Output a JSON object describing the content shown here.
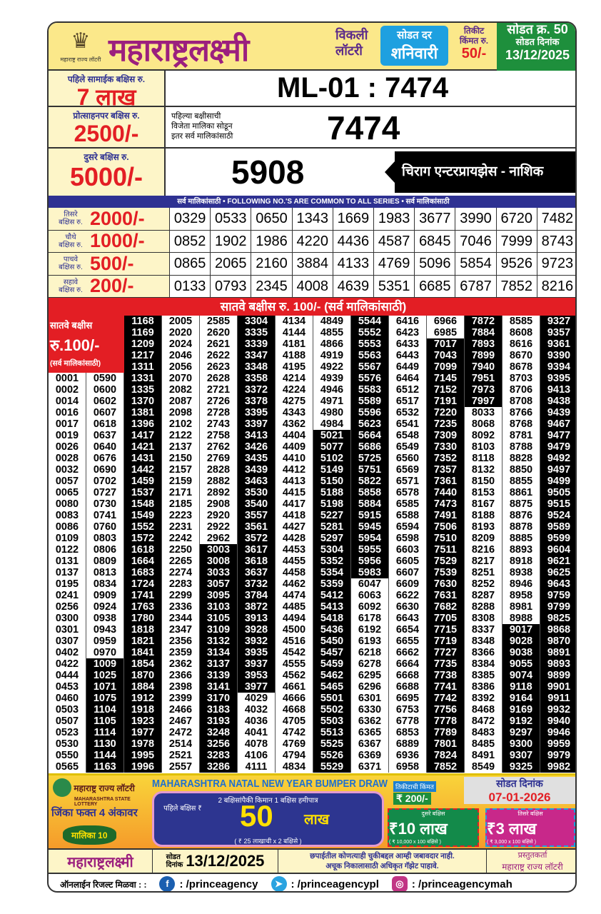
{
  "header": {
    "logo_caption": "महाराष्ट्र राज्य लॉटरी",
    "title": "महाराष्ट्रलक्ष्मी",
    "weekly_line1": "विकली",
    "weekly_line2": "लॉटरी",
    "draw_day_label": "सोडत दर",
    "draw_day": "शनिवारी",
    "ticket_price_label1": "तिकीट",
    "ticket_price_label2": "किंमत रु.",
    "ticket_price": "50/-",
    "draw_no_label": "सोडत क्र.",
    "draw_no": "50",
    "draw_date_label": "सोडत दिनांक",
    "draw_date": "13/12/2025"
  },
  "first_prize": {
    "label": "पहिले सामाईक बक्षिस रु.",
    "amount": "7 लाख",
    "number": "ML-01 : 7474"
  },
  "consolation": {
    "label": "प्रोत्साहनपर बक्षिस रु.",
    "amount": "2500/-",
    "note1": "पहिल्या बक्षीसाची",
    "note2": "विजेता मालिका सोडून",
    "note3": "इतर सर्व मालिकांसाठी",
    "number": "7474"
  },
  "second_prize": {
    "label": "दुसरे बक्षिस रु.",
    "amount": "5000/-",
    "number": "5908",
    "agent": "चिराग एन्टरप्रायझेस - नाशिक"
  },
  "common_bar": "सर्व मालिकांसाठी  •  FOLLOWING NO.'S ARE COMMON TO ALL SERIES  •  सर्व मालिकांसाठी",
  "common_prizes": [
    {
      "label1": "तिसरे",
      "label2": "बक्षिस रु.",
      "amount": "2000/-",
      "numbers": [
        "0329",
        "0533",
        "0650",
        "1343",
        "1669",
        "1983",
        "3677",
        "3990",
        "6720",
        "7482"
      ]
    },
    {
      "label1": "चौथे",
      "label2": "बक्षिस रु.",
      "amount": "1000/-",
      "numbers": [
        "0852",
        "1902",
        "1986",
        "4220",
        "4436",
        "4587",
        "6845",
        "7046",
        "7999",
        "8743"
      ]
    },
    {
      "label1": "पाचवे",
      "label2": "बक्षिस रु.",
      "amount": "500/-",
      "numbers": [
        "0865",
        "2065",
        "2160",
        "3884",
        "4133",
        "4769",
        "5096",
        "5854",
        "9526",
        "9723"
      ]
    },
    {
      "label1": "सहावे",
      "label2": "बक्षिस रु.",
      "amount": "200/-",
      "numbers": [
        "0133",
        "0793",
        "2345",
        "4008",
        "4639",
        "5351",
        "6685",
        "6787",
        "7852",
        "8216"
      ]
    }
  ],
  "seventh": {
    "bar": "सातवे बक्षीस रु. 100/-  (सर्व मालिकांसाठी)",
    "label1": "सातवे बक्षीस",
    "label2": "रु.100/-",
    "label3": "(सर्व मालिकांसाठी)",
    "columns": [
      [
        "0001",
        "0002",
        "0014",
        "0016",
        "0017",
        "0019",
        "0026",
        "0028",
        "0032",
        "0057",
        "0065",
        "0080",
        "0083",
        "0086",
        "0109",
        "0122",
        "0131",
        "0137",
        "0195",
        "0241",
        "0256",
        "0300",
        "0301",
        "0307",
        "0402",
        "0422",
        "0444",
        "0453",
        "0460",
        "0503",
        "0507",
        "0523",
        "0530",
        "0550",
        "0565"
      ],
      [
        "0590",
        "0600",
        "0602",
        "0607",
        "0618",
        "0637",
        "0640",
        "0676",
        "0690",
        "0702",
        "0727",
        "0730",
        "0741",
        "0760",
        "0803",
        "0806",
        "0809",
        "0813",
        "0834",
        "0909",
        "0924",
        "0938",
        "0943",
        "0959",
        "0970",
        "1009",
        "1025",
        "1071",
        "1075",
        "1104",
        "1105",
        "1114",
        "1130",
        "1144",
        "1163"
      ],
      [
        "1168",
        "1169",
        "1209",
        "1217",
        "1311",
        "1331",
        "1335",
        "1370",
        "1381",
        "1396",
        "1417",
        "1421",
        "1431",
        "1442",
        "1459",
        "1537",
        "1548",
        "1549",
        "1552",
        "1572",
        "1618",
        "1664",
        "1683",
        "1724",
        "1741",
        "1763",
        "1780",
        "1818",
        "1821",
        "1841",
        "1854",
        "1870",
        "1884",
        "1912",
        "1918",
        "1923",
        "1977",
        "1978",
        "1995",
        "1996"
      ],
      [
        "2005",
        "2020",
        "2024",
        "2046",
        "2056",
        "2070",
        "2082",
        "2087",
        "2098",
        "2102",
        "2122",
        "2137",
        "2150",
        "2157",
        "2159",
        "2171",
        "2185",
        "2223",
        "2231",
        "2242",
        "2250",
        "2265",
        "2274",
        "2283",
        "2299",
        "2336",
        "2344",
        "2347",
        "2356",
        "2359",
        "2362",
        "2366",
        "2398",
        "2399",
        "2466",
        "2467",
        "2472",
        "2514",
        "2521",
        "2557"
      ],
      [
        "2585",
        "2620",
        "2621",
        "2622",
        "2623",
        "2628",
        "2721",
        "2726",
        "2728",
        "2743",
        "2758",
        "2762",
        "2769",
        "2828",
        "2882",
        "2892",
        "2908",
        "2920",
        "2922",
        "2962",
        "3003",
        "3008",
        "3033",
        "3057",
        "3095",
        "3103",
        "3105",
        "3109",
        "3132",
        "3134",
        "3137",
        "3139",
        "3141",
        "3170",
        "3183",
        "3193",
        "3248",
        "3256",
        "3283",
        "3286"
      ],
      [
        "3304",
        "3335",
        "3339",
        "3347",
        "3348",
        "3358",
        "3372",
        "3378",
        "3395",
        "3397",
        "3413",
        "3426",
        "3435",
        "3439",
        "3463",
        "3530",
        "3540",
        "3557",
        "3561",
        "3572",
        "3617",
        "3618",
        "3637",
        "3732",
        "3784",
        "3872",
        "3913",
        "3928",
        "3932",
        "3935",
        "3937",
        "3953",
        "3977",
        "4029",
        "4032",
        "4036",
        "4041",
        "4078",
        "4106",
        "4111"
      ],
      [
        "4134",
        "4144",
        "4181",
        "4188",
        "4195",
        "4214",
        "4224",
        "4275",
        "4343",
        "4362",
        "4404",
        "4409",
        "4410",
        "4412",
        "4413",
        "4415",
        "4417",
        "4418",
        "4427",
        "4428",
        "4453",
        "4455",
        "4458",
        "4462",
        "4474",
        "4485",
        "4494",
        "4500",
        "4516",
        "4542",
        "4555",
        "4562",
        "4661",
        "4666",
        "4668",
        "4705",
        "4742",
        "4769",
        "4794",
        "4834"
      ],
      [
        "4849",
        "4855",
        "4866",
        "4919",
        "4922",
        "4939",
        "4946",
        "4971",
        "4980",
        "4984",
        "5021",
        "5077",
        "5102",
        "5149",
        "5150",
        "5188",
        "5198",
        "5227",
        "5281",
        "5297",
        "5304",
        "5352",
        "5354",
        "5359",
        "5412",
        "5413",
        "5418",
        "5436",
        "5450",
        "5457",
        "5459",
        "5462",
        "5465",
        "5501",
        "5502",
        "5503",
        "5513",
        "5525",
        "5526",
        "5529"
      ],
      [
        "5544",
        "5552",
        "5553",
        "5563",
        "5567",
        "5576",
        "5583",
        "5589",
        "5596",
        "5623",
        "5664",
        "5686",
        "5725",
        "5751",
        "5822",
        "5858",
        "5884",
        "5915",
        "5945",
        "5954",
        "5955",
        "5956",
        "5983",
        "6047",
        "6063",
        "6092",
        "6178",
        "6192",
        "6193",
        "6218",
        "6278",
        "6295",
        "6296",
        "6301",
        "6330",
        "6362",
        "6365",
        "6367",
        "6369",
        "6371"
      ],
      [
        "6416",
        "6423",
        "6433",
        "6443",
        "6449",
        "6464",
        "6512",
        "6517",
        "6532",
        "6541",
        "6548",
        "6549",
        "6560",
        "6569",
        "6571",
        "6578",
        "6585",
        "6588",
        "6594",
        "6598",
        "6603",
        "6605",
        "6607",
        "6609",
        "6622",
        "6630",
        "6643",
        "6654",
        "6655",
        "6662",
        "6664",
        "6668",
        "6688",
        "6695",
        "6753",
        "6778",
        "6853",
        "6889",
        "6936",
        "6958"
      ],
      [
        "6966",
        "6985",
        "7017",
        "7043",
        "7099",
        "7145",
        "7152",
        "7191",
        "7220",
        "7235",
        "7309",
        "7330",
        "7352",
        "7357",
        "7361",
        "7440",
        "7473",
        "7491",
        "7506",
        "7510",
        "7511",
        "7529",
        "7539",
        "7630",
        "7631",
        "7682",
        "7705",
        "7715",
        "7719",
        "7727",
        "7735",
        "7738",
        "7741",
        "7742",
        "7756",
        "7778",
        "7789",
        "7801",
        "7824",
        "7852"
      ],
      [
        "7872",
        "7884",
        "7893",
        "7899",
        "7940",
        "7951",
        "7973",
        "7997",
        "8033",
        "8068",
        "8092",
        "8103",
        "8118",
        "8132",
        "8150",
        "8153",
        "8167",
        "8188",
        "8193",
        "8209",
        "8216",
        "8217",
        "8251",
        "8252",
        "8287",
        "8288",
        "8308",
        "8337",
        "8348",
        "8366",
        "8384",
        "8385",
        "8386",
        "8392",
        "8468",
        "8472",
        "8483",
        "8485",
        "8491",
        "8549"
      ],
      [
        "8585",
        "8608",
        "8616",
        "8670",
        "8678",
        "8703",
        "8706",
        "8708",
        "8766",
        "8768",
        "8781",
        "8788",
        "8828",
        "8850",
        "8855",
        "8861",
        "8875",
        "8876",
        "8878",
        "8885",
        "8893",
        "8918",
        "8938",
        "8946",
        "8958",
        "8981",
        "8988",
        "9017",
        "9028",
        "9038",
        "9055",
        "9074",
        "9118",
        "9164",
        "9169",
        "9192",
        "9297",
        "9300",
        "9307",
        "9325"
      ],
      [
        "9327",
        "9357",
        "9361",
        "9390",
        "9394",
        "9395",
        "9413",
        "9438",
        "9439",
        "9467",
        "9477",
        "9479",
        "9492",
        "9497",
        "9499",
        "9505",
        "9515",
        "9524",
        "9589",
        "9599",
        "9604",
        "9621",
        "9625",
        "9643",
        "9759",
        "9799",
        "9825",
        "9868",
        "9870",
        "9891",
        "9893",
        "9899",
        "9901",
        "9911",
        "9932",
        "9940",
        "9946",
        "9959",
        "9979",
        "9982"
      ]
    ]
  },
  "bumper_ad": {
    "org": "महाराष्ट्र राज्य लॉटरी",
    "org_en": "MAHARASHTRA STATE LOTTERY",
    "title": "MAHARASHTRA NATAL NEW YEAR BUMPER DRAW",
    "tagline": "जिंका फक्त 4 अंकावर",
    "series": "मालिका 10",
    "guarantee": "2 बक्षिसांपैकी किमान 1 बक्षिस हमीपात्र",
    "first_label": "पहिले बक्षिस ₹",
    "first_amount": "50",
    "first_unit": "लाख",
    "first_note": "( ₹ 25 लाखाची x 2 बक्षिसे )",
    "price_label": "तिकीटाची किंमत",
    "price": "₹ 200/-",
    "date_label": "सोडत दिनांक",
    "date": "07-01-2026",
    "second_label": "दुसरे बक्षिस",
    "second_amount": "₹10 लाख",
    "second_note": "( ₹ 10,000 x 100 बक्षिसे )",
    "third_label": "तिसरे बक्षिस",
    "third_amount": "₹3 लाख",
    "third_note": "( ₹ 3,000 x 100 बक्षिसे )"
  },
  "footer": {
    "brand": "महाराष्ट्रलक्ष्मी",
    "date_label1": "सोडत",
    "date_label2": "दिनांक",
    "date": "13/12/2025",
    "disclaimer1": "छपाईतील कोणत्याही चुकीबद्दल आम्ही जबावदार नाही.",
    "disclaimer2": "अचूक निकालासाठी अधिकृत गॅझेट पाहावे.",
    "presenter_label": "प्रस्तुतकर्ता",
    "presenter": "महाराष्ट्र राज्य लॉटरी"
  },
  "social": {
    "label": "ऑनलाईन रिजल्ट मिळवा : :",
    "facebook": ": /princeagency",
    "telegram": ": /princeagencypl",
    "instagram": ": /princeagencymah",
    "colors": {
      "facebook": "#1b5fb0",
      "telegram": "#2aa3e0",
      "instagram": "#c13584"
    }
  }
}
